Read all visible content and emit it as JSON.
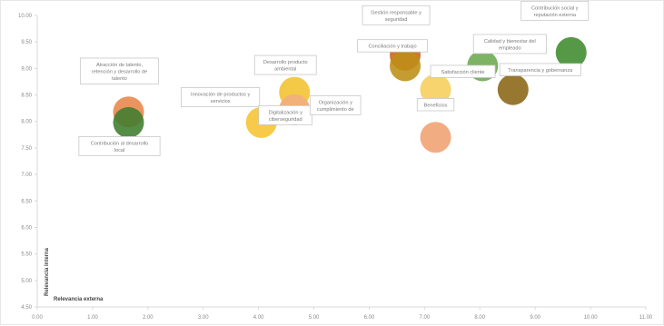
{
  "chart_data": {
    "type": "bubble",
    "title": "",
    "xlabel": "Relevancia externa",
    "ylabel": "Relevancia interna",
    "xlim": [
      0,
      11
    ],
    "ylim": [
      4.5,
      10
    ],
    "x_ticks": [
      "0.00",
      "1.00",
      "2.00",
      "3.00",
      "4.00",
      "5.00",
      "6.00",
      "7.00",
      "8.00",
      "9.00",
      "10.00",
      "11.00"
    ],
    "y_ticks": [
      "4.50",
      "5.00",
      "5.50",
      "6.00",
      "6.50",
      "7.00",
      "7.50",
      "8.00",
      "8.50",
      "9.00",
      "9.50",
      "10.00"
    ],
    "grid": false,
    "points": [
      {
        "label": "Atracción de talento, retención y desarrollo de talento",
        "x": 1.65,
        "y": 8.18,
        "color": "#e8854a"
      },
      {
        "label": "Contribución al desarrollo local",
        "x": 1.65,
        "y": 7.98,
        "color": "#3e7d2e"
      },
      {
        "label": "Innovación de productos y servicios",
        "x": 4.05,
        "y": 7.98,
        "color": "#f6c430"
      },
      {
        "label": "Desarrollo producto ambiental",
        "x": 4.65,
        "y": 8.55,
        "color": "#f3c12e"
      },
      {
        "label": "Digitalización y ciberseguridad",
        "x": 4.65,
        "y": 8.22,
        "color": "#f0b07a"
      },
      {
        "label": "Organización y cumplimiento de",
        "x": 4.65,
        "y": 8.22,
        "color": "#f0b07a"
      },
      {
        "label": "Gestión responsable y seguridad",
        "x": 6.65,
        "y": 9.25,
        "color": "#c9641f"
      },
      {
        "label": "Conciliación y trabajo",
        "x": 6.65,
        "y": 9.05,
        "color": "#bd8e16"
      },
      {
        "label": "Satisfacción cliente",
        "x": 7.2,
        "y": 8.6,
        "color": "#f7ce5a"
      },
      {
        "label": "Beneficios",
        "x": 7.2,
        "y": 7.7,
        "color": "#f0a070"
      },
      {
        "label": "Calidad y bienestar del empleado",
        "x": 8.05,
        "y": 9.05,
        "color": "#6aa84f"
      },
      {
        "label": "Transparencia y gobernanza",
        "x": 8.6,
        "y": 8.6,
        "color": "#8a6414"
      },
      {
        "label": "Contribución social y reputación externa",
        "x": 9.65,
        "y": 9.3,
        "color": "#3d8b2d"
      }
    ]
  },
  "colors": {
    "axis": "#d9d9d9",
    "tick_text": "#8a8a8a",
    "label_border": "#c8c8c8"
  }
}
